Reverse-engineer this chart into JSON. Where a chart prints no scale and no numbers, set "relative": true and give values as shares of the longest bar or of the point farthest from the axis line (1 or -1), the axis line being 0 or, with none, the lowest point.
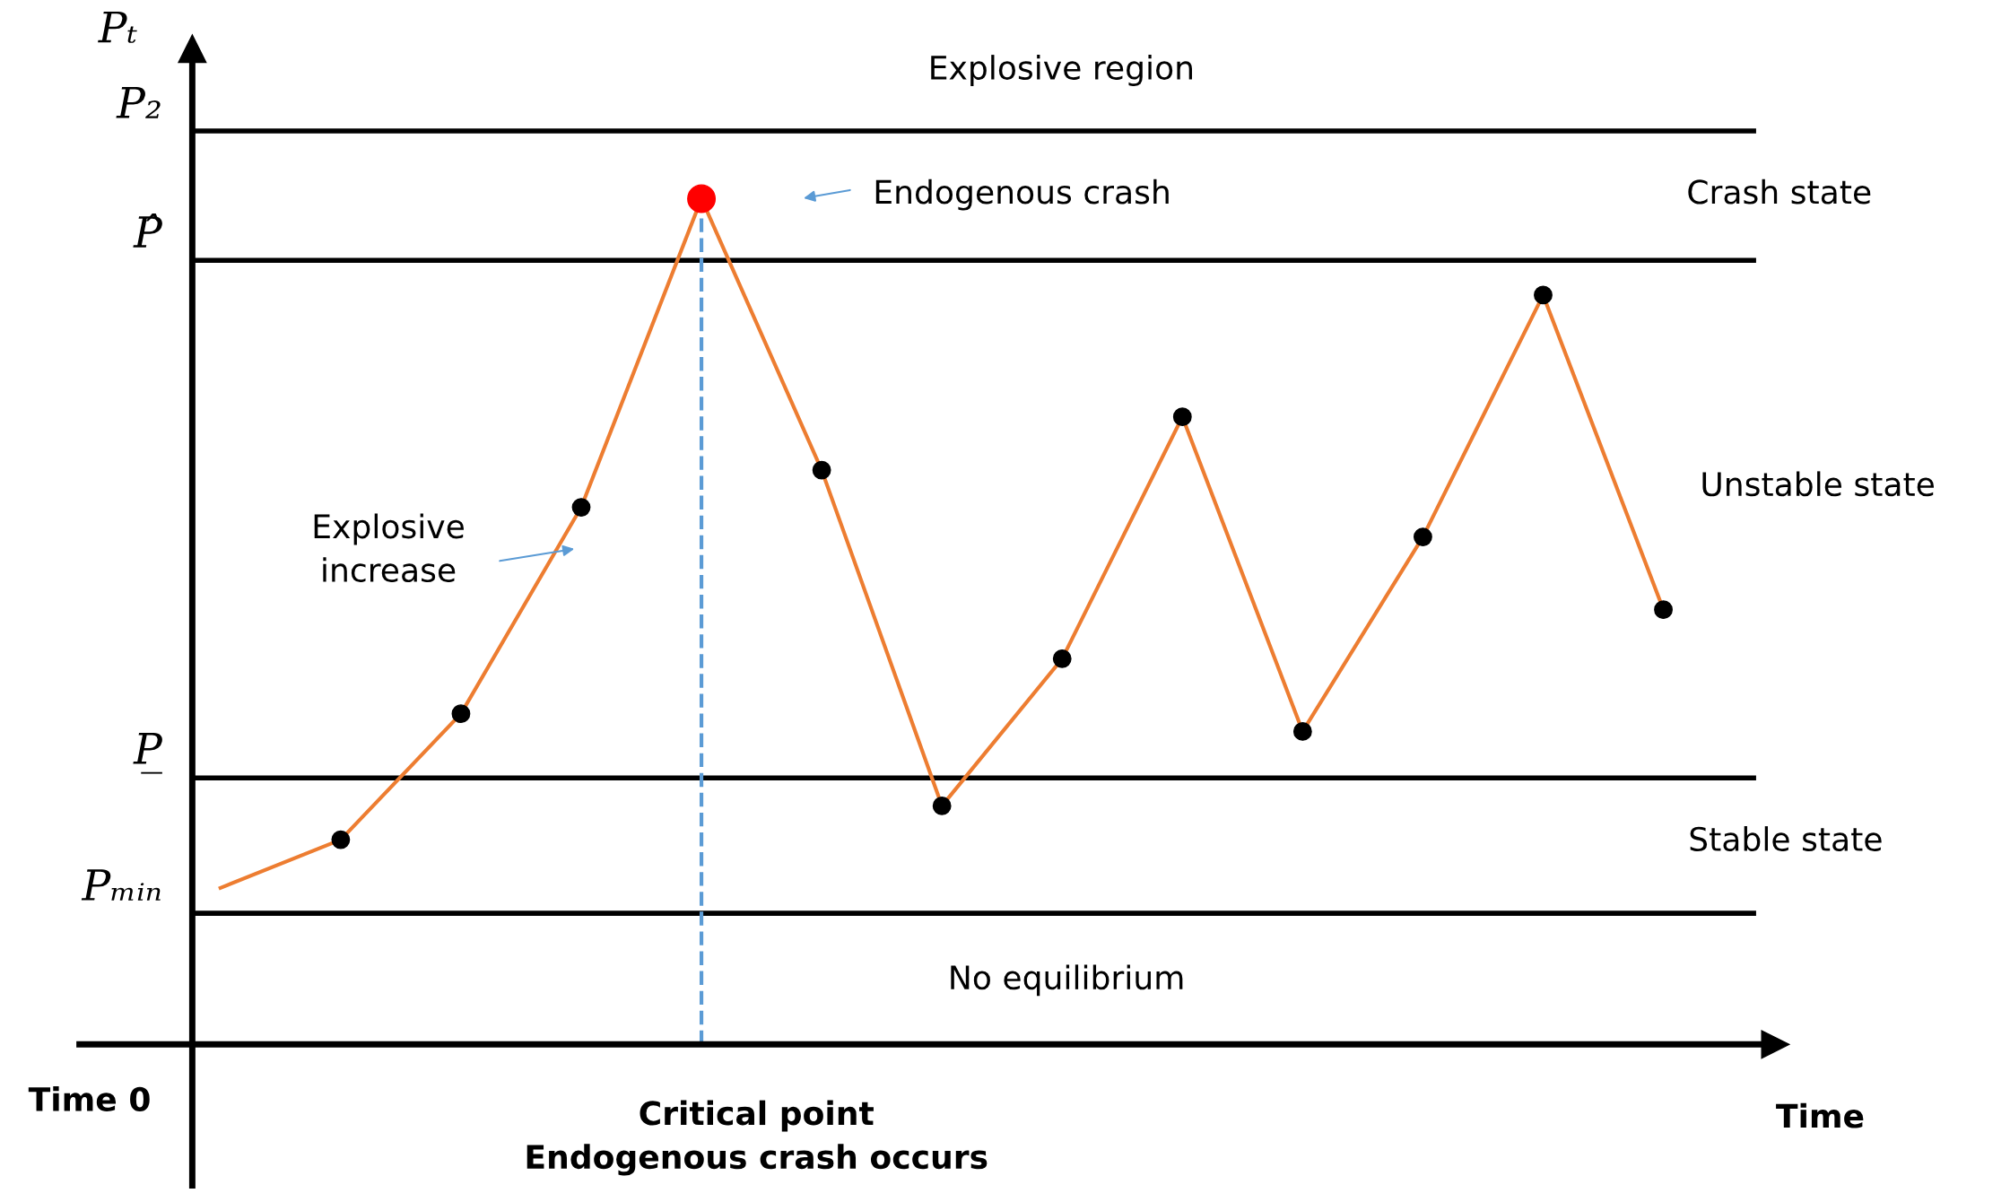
{
  "chart_data": {
    "type": "line",
    "relative": true,
    "ylabel": "Pₜ",
    "xlabel": "Time",
    "categories": [
      null,
      null,
      null,
      null,
      null,
      null,
      null,
      null,
      null,
      null,
      null,
      null,
      null
    ],
    "series": [
      {
        "color": "#ed7d31",
        "marker": "circle",
        "colors": [
          null,
          "#000000",
          "#000000",
          "#000000",
          "#ff0000",
          "#000000",
          "#000000",
          "#000000",
          "#000000",
          "#000000",
          "#000000",
          "#000000",
          "#000000"
        ],
        "values": [
          0.185,
          0.242,
          0.391,
          0.635,
          1.0,
          0.679,
          0.282,
          0.456,
          0.742,
          0.37,
          0.6,
          0.886,
          0.514
        ]
      }
    ],
    "ref_lines": [
      {
        "axis": "y",
        "value": 1.08,
        "label": "P₂",
        "color": "#000000"
      },
      {
        "axis": "y",
        "value": 0.927,
        "label": "P̂",
        "color": "#000000"
      },
      {
        "axis": "y",
        "value": 0.315,
        "label": "P̲",
        "color": "#000000"
      },
      {
        "axis": "y",
        "value": 0.155,
        "label": "Pₘᵢₙ",
        "color": "#000000"
      }
    ],
    "annotations": [
      "Explosive region",
      "Crash state",
      "Unstable state",
      "Stable state",
      "No equilibrium",
      "Explosive\nincrease",
      "Endogenous crash",
      "Time 0",
      "Critical point\nEndogenous crash occurs"
    ],
    "legend": false,
    "grid": false
  }
}
